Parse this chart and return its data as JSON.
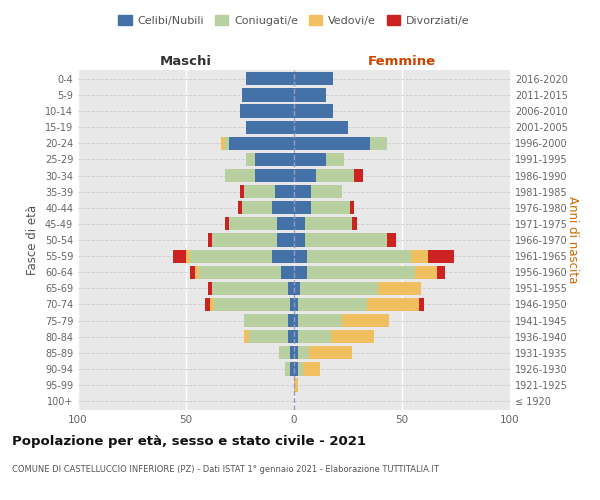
{
  "age_groups": [
    "100+",
    "95-99",
    "90-94",
    "85-89",
    "80-84",
    "75-79",
    "70-74",
    "65-69",
    "60-64",
    "55-59",
    "50-54",
    "45-49",
    "40-44",
    "35-39",
    "30-34",
    "25-29",
    "20-24",
    "15-19",
    "10-14",
    "5-9",
    "0-4"
  ],
  "birth_years": [
    "≤ 1920",
    "1921-1925",
    "1926-1930",
    "1931-1935",
    "1936-1940",
    "1941-1945",
    "1946-1950",
    "1951-1955",
    "1956-1960",
    "1961-1965",
    "1966-1970",
    "1971-1975",
    "1976-1980",
    "1981-1985",
    "1986-1990",
    "1991-1995",
    "1996-2000",
    "2001-2005",
    "2006-2010",
    "2011-2015",
    "2016-2020"
  ],
  "colors": {
    "celibi": "#4472a8",
    "coniugati": "#b8cfa0",
    "vedovi": "#f0c060",
    "divorziati": "#cc2222"
  },
  "maschi": {
    "celibi": [
      0,
      0,
      2,
      2,
      3,
      3,
      2,
      3,
      6,
      10,
      8,
      8,
      10,
      9,
      18,
      18,
      30,
      22,
      25,
      24,
      22
    ],
    "coniugati": [
      0,
      0,
      2,
      5,
      18,
      20,
      35,
      35,
      38,
      38,
      30,
      22,
      14,
      14,
      14,
      4,
      2,
      0,
      0,
      0,
      0
    ],
    "vedovi": [
      0,
      0,
      0,
      0,
      2,
      0,
      2,
      0,
      2,
      2,
      0,
      0,
      0,
      0,
      0,
      0,
      2,
      0,
      0,
      0,
      0
    ],
    "divorziati": [
      0,
      0,
      0,
      0,
      0,
      0,
      2,
      2,
      2,
      6,
      2,
      2,
      2,
      2,
      0,
      0,
      0,
      0,
      0,
      0,
      0
    ]
  },
  "femmine": {
    "celibi": [
      0,
      0,
      2,
      2,
      2,
      2,
      2,
      3,
      6,
      6,
      5,
      5,
      8,
      8,
      10,
      15,
      35,
      25,
      18,
      15,
      18
    ],
    "coniugati": [
      0,
      0,
      2,
      5,
      15,
      20,
      32,
      36,
      50,
      48,
      38,
      22,
      18,
      14,
      18,
      8,
      8,
      0,
      0,
      0,
      0
    ],
    "vedovi": [
      0,
      2,
      8,
      20,
      20,
      22,
      24,
      20,
      10,
      8,
      0,
      0,
      0,
      0,
      0,
      0,
      0,
      0,
      0,
      0,
      0
    ],
    "divorziati": [
      0,
      0,
      0,
      0,
      0,
      0,
      2,
      0,
      4,
      12,
      4,
      2,
      2,
      0,
      4,
      0,
      0,
      0,
      0,
      0,
      0
    ]
  },
  "xlim": 100,
  "title": "Popolazione per età, sesso e stato civile - 2021",
  "subtitle": "COMUNE DI CASTELLUCCIO INFERIORE (PZ) - Dati ISTAT 1° gennaio 2021 - Elaborazione TUTTITALIA.IT",
  "ylabel": "Fasce di età",
  "right_ylabel": "Anni di nascita",
  "legend_labels": [
    "Celibi/Nubili",
    "Coniugati/e",
    "Vedovi/e",
    "Divorziati/e"
  ],
  "maschi_label": "Maschi",
  "femmine_label": "Femmine",
  "bg_color": "#e8e8e8",
  "fig_color": "#ffffff"
}
